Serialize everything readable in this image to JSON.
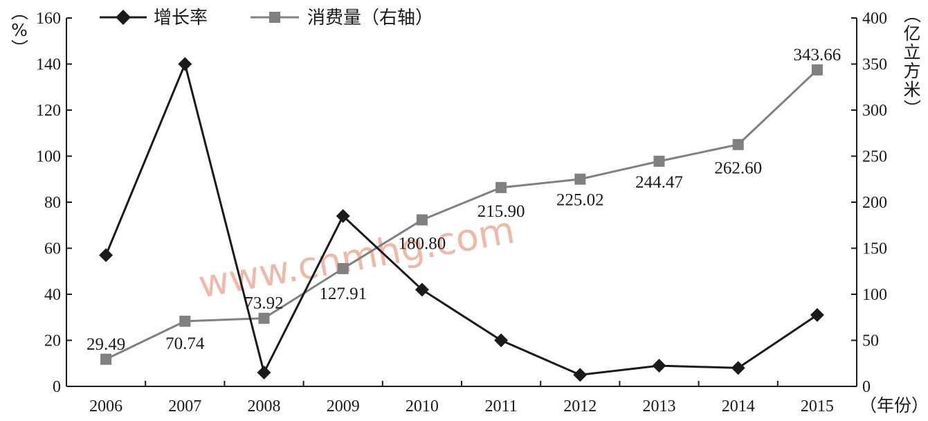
{
  "chart_data": {
    "type": "line",
    "categories": [
      "2006",
      "2007",
      "2008",
      "2009",
      "2010",
      "2011",
      "2012",
      "2013",
      "2014",
      "2015"
    ],
    "x_unit": "（年份）",
    "left_axis": {
      "label": "（%）",
      "ylim": [
        0,
        160
      ],
      "ticks": [
        0,
        20,
        40,
        60,
        80,
        100,
        120,
        140,
        160
      ]
    },
    "right_axis": {
      "label": "（亿立方米）",
      "ylim": [
        0,
        400
      ],
      "ticks": [
        0,
        50,
        100,
        150,
        200,
        250,
        300,
        350,
        400
      ]
    },
    "series": [
      {
        "name": "增长率",
        "axis": "left",
        "color": "#1a1a1a",
        "marker": "diamond",
        "values": [
          57,
          140,
          6,
          74,
          42,
          20,
          5,
          9,
          8,
          31
        ]
      },
      {
        "name": "消费量（右轴）",
        "axis": "right",
        "color": "#808080",
        "marker": "square",
        "values": [
          29.49,
          70.74,
          73.92,
          127.91,
          180.8,
          215.9,
          225.02,
          244.47,
          262.6,
          343.66
        ],
        "data_labels": [
          "29.49",
          "70.74",
          "73.92",
          "127.91",
          "180.80",
          "215.90",
          "225.02",
          "244.47",
          "262.60",
          "343.66"
        ]
      }
    ],
    "legend_position": "top-left",
    "grid": false
  },
  "watermark": "www.cnmhg.com"
}
